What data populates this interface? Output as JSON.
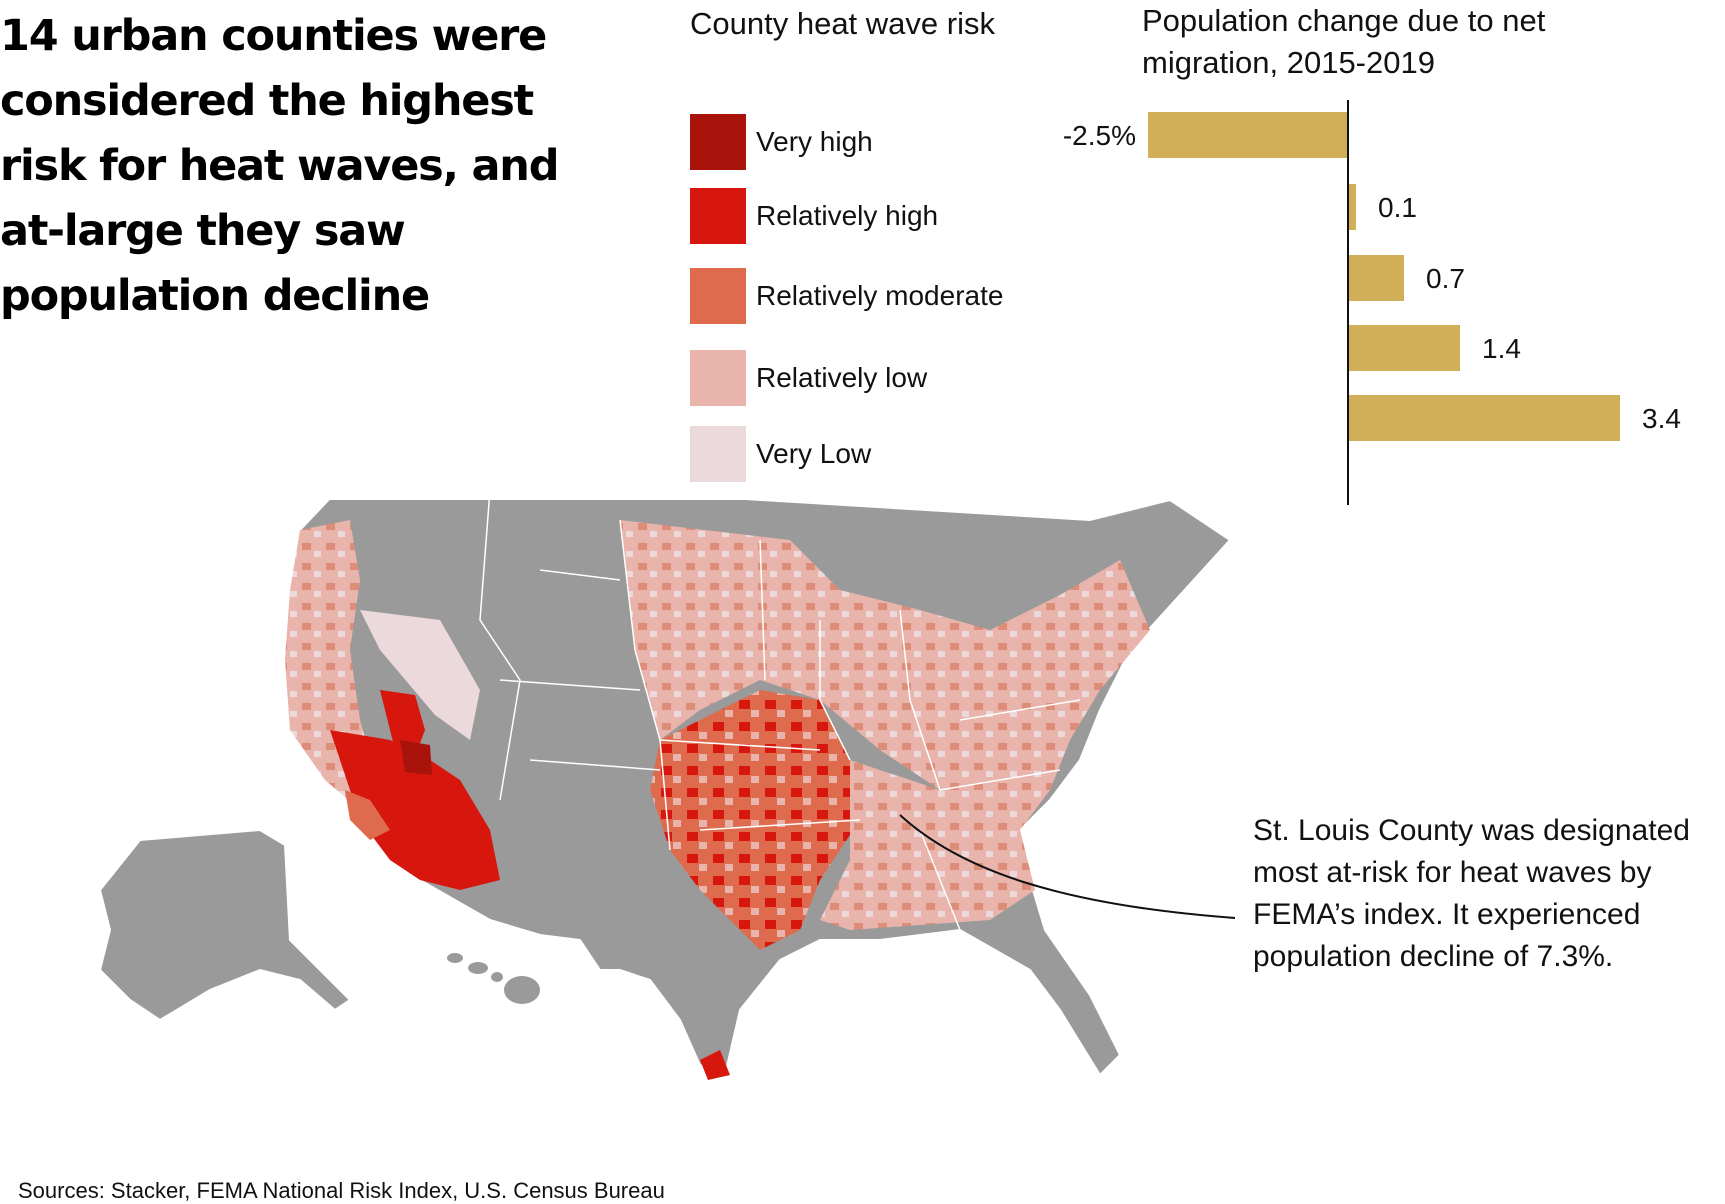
{
  "headline": "14 urban counties were considered the highest risk for heat waves, and at-large they saw population decline",
  "legend": {
    "title": "County heat wave risk",
    "items": [
      {
        "label": "Very high",
        "color": "#a8140c"
      },
      {
        "label": "Relatively high",
        "color": "#d7170e"
      },
      {
        "label": "Relatively moderate",
        "color": "#de6b4e"
      },
      {
        "label": "Relatively low",
        "color": "#e8b4ab"
      },
      {
        "label": "Very Low",
        "color": "#ecd9dc"
      }
    ]
  },
  "chart_data": {
    "type": "bar",
    "orientation": "horizontal",
    "title": "Population change due to net migration, 2015-2019",
    "categories": [
      "Very high",
      "Relatively high",
      "Relatively moderate",
      "Relatively low",
      "Very Low"
    ],
    "values": [
      -2.5,
      0.1,
      0.7,
      1.4,
      3.4
    ],
    "data_labels": [
      "-2.5%",
      "0.1",
      "0.7",
      "1.4",
      "3.4"
    ],
    "bar_color": "#d0af58",
    "xlim": [
      -2.5,
      3.4
    ]
  },
  "map": {
    "land_color": "#9a9a9a",
    "border_color": "#ffffff"
  },
  "annotation": "St. Louis County was designated most at-risk for heat waves by FEMA’s index. It experienced population decline of 7.3%.",
  "sources": "Sources: Stacker, FEMA National Risk Index, U.S. Census Bureau"
}
